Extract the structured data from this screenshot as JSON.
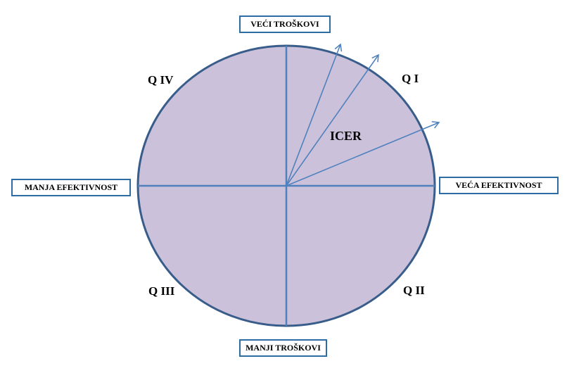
{
  "colors": {
    "circle_fill": "#ccc1da",
    "circle_stroke": "#385d8a",
    "axis": "#4f81bd",
    "arrow": "#4f81bd",
    "box_border": "#2e6da4"
  },
  "labels": {
    "top": "VEĆI TROŠKOVI",
    "bottom": "MANJI TROŠKOVI",
    "left": "MANJA EFEKTIVNOST",
    "right": "VEĆA EFEKTIVNOST"
  },
  "quadrants": {
    "q1": "Q I",
    "q2": "Q II",
    "q3": "Q III",
    "q4": "Q IV"
  },
  "ratio_label": "ICER"
}
